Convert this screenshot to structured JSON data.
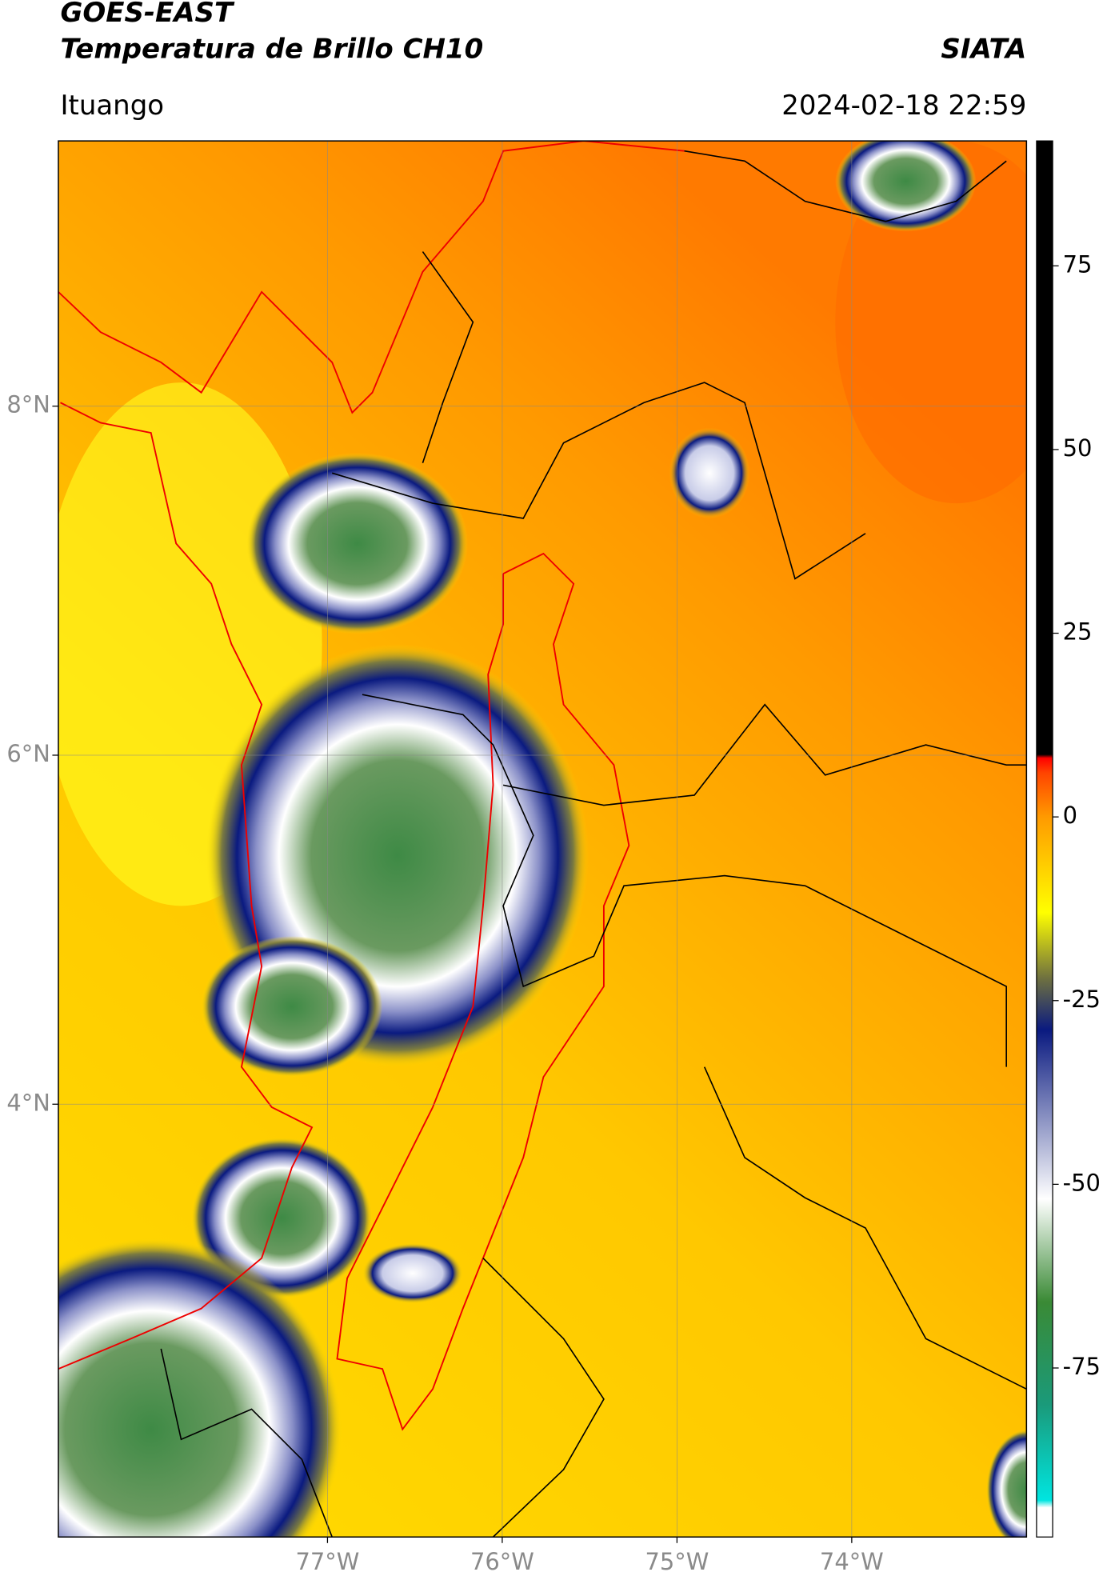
{
  "chart_data": {
    "type": "map",
    "title": "GOES-EAST",
    "subtitle": "Temperatura de Brillo CH10",
    "source": "SIATA",
    "region": "Ituango",
    "datetime": "2024-02-18 22:59",
    "xlim": [
      -78.54,
      -73.0
    ],
    "ylim": [
      1.52,
      9.52
    ],
    "xticks": [
      {
        "value": -77,
        "label": "77°W"
      },
      {
        "value": -76,
        "label": "76°W"
      },
      {
        "value": -75,
        "label": "75°W"
      },
      {
        "value": -74,
        "label": "74°W"
      }
    ],
    "yticks": [
      {
        "value": 8,
        "label": "8°N"
      },
      {
        "value": 6,
        "label": "6°N"
      },
      {
        "value": 4,
        "label": "4°N"
      }
    ],
    "grid": true,
    "colorbar": {
      "lim": [
        -98,
        92
      ],
      "ticks": [
        75,
        50,
        25,
        0,
        -25,
        -50,
        -75
      ],
      "colormap": [
        {
          "value": -98,
          "color": "#ffffff"
        },
        {
          "value": -94,
          "color": "#ffffff"
        },
        {
          "value": -93,
          "color": "#00e5e0"
        },
        {
          "value": -80,
          "color": "#1a9a7a"
        },
        {
          "value": -66,
          "color": "#3a8a35"
        },
        {
          "value": -52,
          "color": "#ffffff"
        },
        {
          "value": -29,
          "color": "#0a1a80"
        },
        {
          "value": -22,
          "color": "#6e7040"
        },
        {
          "value": -13,
          "color": "#ffff00"
        },
        {
          "value": 0,
          "color": "#ff9a00"
        },
        {
          "value": 6,
          "color": "#ff4400"
        },
        {
          "value": 8,
          "color": "#ff0000"
        },
        {
          "value": 8.5,
          "color": "#000000"
        },
        {
          "value": 92,
          "color": "#000000"
        }
      ]
    }
  }
}
